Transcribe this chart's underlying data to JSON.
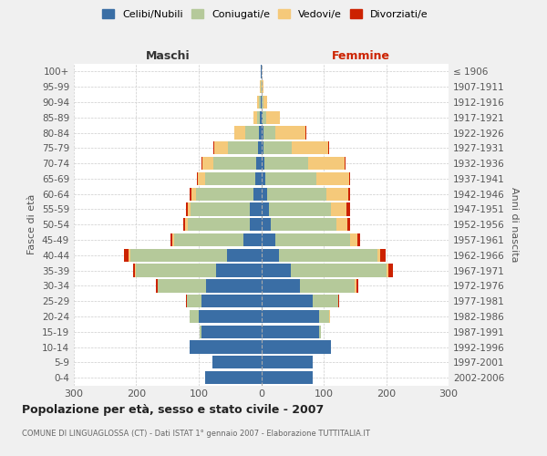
{
  "age_groups": [
    "0-4",
    "5-9",
    "10-14",
    "15-19",
    "20-24",
    "25-29",
    "30-34",
    "35-39",
    "40-44",
    "45-49",
    "50-54",
    "55-59",
    "60-64",
    "65-69",
    "70-74",
    "75-79",
    "80-84",
    "85-89",
    "90-94",
    "95-99",
    "100+"
  ],
  "birth_years": [
    "2002-2006",
    "1997-2001",
    "1992-1996",
    "1987-1991",
    "1982-1986",
    "1977-1981",
    "1972-1976",
    "1967-1971",
    "1962-1966",
    "1957-1961",
    "1952-1956",
    "1947-1951",
    "1942-1946",
    "1937-1941",
    "1932-1936",
    "1927-1931",
    "1922-1926",
    "1917-1921",
    "1912-1916",
    "1907-1911",
    "≤ 1906"
  ],
  "maschi": {
    "celibi": [
      90,
      78,
      115,
      95,
      100,
      95,
      88,
      72,
      55,
      28,
      18,
      18,
      12,
      10,
      8,
      5,
      3,
      2,
      1,
      0,
      1
    ],
    "coniugati": [
      0,
      0,
      0,
      4,
      14,
      24,
      78,
      128,
      155,
      112,
      100,
      95,
      92,
      80,
      68,
      48,
      22,
      5,
      3,
      1,
      0
    ],
    "vedovi": [
      0,
      0,
      0,
      0,
      0,
      0,
      0,
      2,
      3,
      3,
      4,
      5,
      8,
      12,
      18,
      22,
      18,
      5,
      2,
      1,
      0
    ],
    "divorziati": [
      0,
      0,
      0,
      0,
      0,
      1,
      2,
      3,
      6,
      2,
      3,
      2,
      2,
      1,
      1,
      1,
      0,
      0,
      0,
      0,
      0
    ]
  },
  "femmine": {
    "nubili": [
      82,
      82,
      112,
      92,
      92,
      83,
      62,
      48,
      28,
      22,
      15,
      12,
      10,
      7,
      5,
      4,
      3,
      2,
      1,
      0,
      0
    ],
    "coniugate": [
      0,
      0,
      0,
      4,
      17,
      40,
      88,
      152,
      158,
      120,
      105,
      100,
      95,
      82,
      70,
      45,
      20,
      6,
      3,
      1,
      0
    ],
    "vedove": [
      0,
      0,
      0,
      0,
      1,
      1,
      2,
      3,
      5,
      12,
      18,
      25,
      35,
      52,
      58,
      58,
      48,
      22,
      6,
      3,
      0
    ],
    "divorziate": [
      0,
      0,
      0,
      0,
      0,
      1,
      3,
      8,
      8,
      5,
      5,
      5,
      2,
      2,
      2,
      2,
      1,
      0,
      0,
      0,
      0
    ]
  },
  "colors": {
    "celibi_nubili": "#3a6ea5",
    "coniugati": "#b5c99a",
    "vedovi": "#f5c97a",
    "divorziati": "#cc2200"
  },
  "xlim": 300,
  "title": "Popolazione per età, sesso e stato civile - 2007",
  "subtitle": "COMUNE DI LINGUAGLOSSA (CT) - Dati ISTAT 1° gennaio 2007 - Elaborazione TUTTITALIA.IT",
  "xlabel_left": "Maschi",
  "xlabel_right": "Femmine",
  "ylabel_left": "Fasce di età",
  "ylabel_right": "Anni di nascita",
  "bg_color": "#f0f0f0",
  "plot_bg": "#ffffff",
  "grid_color": "#cccccc",
  "maschi_label_color": "#333333",
  "femmine_label_color": "#cc2200"
}
